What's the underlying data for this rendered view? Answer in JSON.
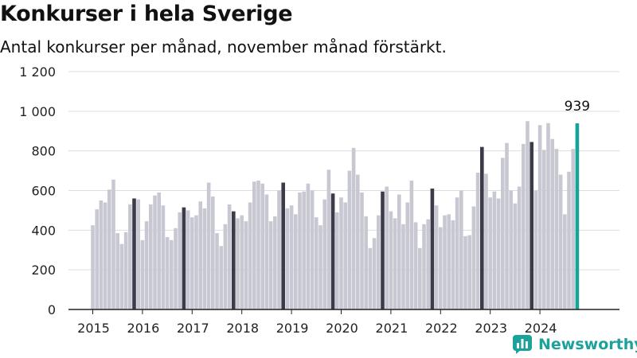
{
  "header": {
    "title": "Konkurser i hela Sverige",
    "subtitle": "Antal konkurser per månad, november månad förstärkt."
  },
  "brand": {
    "name": "Newsworthy"
  },
  "colors": {
    "bar": "#c8c8d2",
    "highlight": "#3b3b4a",
    "latest": "#17a29a",
    "grid": "#dddddd",
    "brand": "#1aa29b"
  },
  "chart_data": {
    "type": "bar",
    "title": "Konkurser i hela Sverige",
    "subtitle": "Antal konkurser per månad, november månad förstärkt.",
    "ylim": [
      0,
      1200
    ],
    "y_ticks": [
      0,
      200,
      400,
      600,
      800,
      1000,
      1200
    ],
    "y_tick_labels": [
      "0",
      "200",
      "400",
      "600",
      "800",
      "1 000",
      "1 200"
    ],
    "x_tick_labels": [
      "2015",
      "2016",
      "2017",
      "2018",
      "2019",
      "2020",
      "2021",
      "2022",
      "2023",
      "2024"
    ],
    "start": "2015-01",
    "highlight_month": "november",
    "latest_label": "939",
    "years": [
      {
        "year": "2015",
        "values": [
          425,
          505,
          550,
          540,
          605,
          655,
          385,
          330,
          390,
          530,
          560,
          555
        ]
      },
      {
        "year": "2016",
        "values": [
          350,
          445,
          530,
          575,
          590,
          525,
          365,
          350,
          410,
          490,
          515,
          500
        ]
      },
      {
        "year": "2017",
        "values": [
          465,
          475,
          545,
          510,
          640,
          570,
          385,
          320,
          430,
          530,
          495,
          460
        ]
      },
      {
        "year": "2018",
        "values": [
          475,
          445,
          540,
          645,
          650,
          635,
          580,
          445,
          470,
          600,
          640,
          510
        ]
      },
      {
        "year": "2019",
        "values": [
          525,
          480,
          590,
          595,
          635,
          600,
          465,
          425,
          555,
          705,
          585,
          490
        ]
      },
      {
        "year": "2020",
        "values": [
          565,
          540,
          700,
          815,
          680,
          590,
          470,
          310,
          360,
          475,
          595,
          620
        ]
      },
      {
        "year": "2021",
        "values": [
          495,
          460,
          580,
          430,
          540,
          650,
          440,
          310,
          430,
          455,
          610,
          525
        ]
      },
      {
        "year": "2022",
        "values": [
          415,
          475,
          480,
          450,
          565,
          600,
          370,
          375,
          520,
          690,
          820,
          685
        ]
      },
      {
        "year": "2023",
        "values": [
          565,
          595,
          560,
          765,
          840,
          600,
          535,
          620,
          835,
          950,
          845,
          600
        ]
      },
      {
        "year": "2024",
        "values": [
          930,
          805,
          940,
          860,
          810,
          680,
          480,
          695,
          810,
          939
        ]
      }
    ]
  }
}
